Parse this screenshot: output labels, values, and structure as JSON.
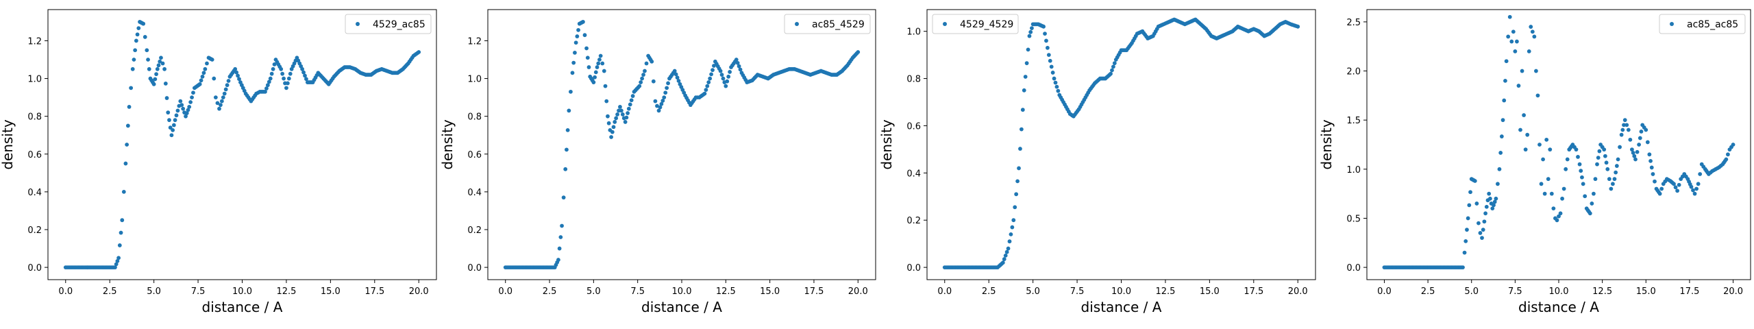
{
  "colors": {
    "series": "#1f77b4",
    "axis": "#000000",
    "legend_border": "#cccccc"
  },
  "chart_data": [
    {
      "type": "scatter",
      "xlabel": "distance / A",
      "ylabel": "density",
      "xlim": [
        -1.0,
        21.0
      ],
      "ylim": [
        -0.065,
        1.365
      ],
      "xticks": [
        0.0,
        2.5,
        5.0,
        7.5,
        10.0,
        12.5,
        15.0,
        17.5,
        20.0
      ],
      "xtick_labels": [
        "0.0",
        "2.5",
        "5.0",
        "7.5",
        "10.0",
        "12.5",
        "15.0",
        "17.5",
        "20.0"
      ],
      "yticks": [
        0.0,
        0.2,
        0.4,
        0.6,
        0.8,
        1.0,
        1.2
      ],
      "ytick_labels": [
        "0.0",
        "0.2",
        "0.4",
        "0.6",
        "0.8",
        "1.0",
        "1.2"
      ],
      "legend": "top-right",
      "grid": false,
      "series": [
        {
          "name": "4529_ac85",
          "x": [
            0.0,
            2.8,
            3.0,
            3.2,
            3.4,
            3.6,
            3.8,
            4.0,
            4.2,
            4.4,
            4.6,
            4.8,
            5.0,
            5.2,
            5.4,
            5.6,
            5.8,
            6.0,
            6.2,
            6.5,
            6.8,
            7.0,
            7.3,
            7.6,
            7.9,
            8.1,
            8.3,
            8.5,
            8.7,
            9.0,
            9.3,
            9.6,
            9.9,
            10.2,
            10.5,
            10.8,
            11.0,
            11.3,
            11.6,
            11.9,
            12.2,
            12.5,
            12.8,
            13.1,
            13.4,
            13.7,
            14.0,
            14.3,
            14.6,
            14.9,
            15.2,
            15.5,
            15.8,
            16.1,
            16.4,
            16.7,
            17.0,
            17.3,
            17.6,
            17.9,
            18.2,
            18.5,
            18.8,
            19.1,
            19.4,
            19.7,
            20.0
          ],
          "y": [
            0.0,
            0.0,
            0.05,
            0.25,
            0.55,
            0.85,
            1.05,
            1.2,
            1.3,
            1.29,
            1.15,
            1.0,
            0.97,
            1.05,
            1.11,
            1.05,
            0.82,
            0.7,
            0.78,
            0.88,
            0.8,
            0.85,
            0.95,
            0.97,
            1.05,
            1.11,
            1.1,
            0.9,
            0.84,
            0.92,
            1.01,
            1.05,
            0.98,
            0.92,
            0.88,
            0.92,
            0.93,
            0.93,
            1.0,
            1.1,
            1.05,
            0.95,
            1.05,
            1.11,
            1.05,
            0.98,
            0.98,
            1.03,
            1.0,
            0.97,
            1.01,
            1.04,
            1.06,
            1.06,
            1.05,
            1.03,
            1.02,
            1.02,
            1.04,
            1.05,
            1.04,
            1.03,
            1.03,
            1.05,
            1.08,
            1.12,
            1.14
          ]
        }
      ]
    },
    {
      "type": "scatter",
      "xlabel": "distance / A",
      "ylabel": "density",
      "xlim": [
        -1.0,
        21.0
      ],
      "ylim": [
        -0.065,
        1.365
      ],
      "xticks": [
        0.0,
        2.5,
        5.0,
        7.5,
        10.0,
        12.5,
        15.0,
        17.5,
        20.0
      ],
      "xtick_labels": [
        "0.0",
        "2.5",
        "5.0",
        "7.5",
        "10.0",
        "12.5",
        "15.0",
        "17.5",
        "20.0"
      ],
      "yticks": [
        0.0,
        0.2,
        0.4,
        0.6,
        0.8,
        1.0,
        1.2
      ],
      "ytick_labels": [
        "0.0",
        "0.2",
        "0.4",
        "0.6",
        "0.8",
        "1.0",
        "1.2"
      ],
      "legend": "top-right",
      "grid": false,
      "series": [
        {
          "name": "ac85_4529",
          "x": [
            0.0,
            2.8,
            3.0,
            3.2,
            3.4,
            3.6,
            3.8,
            4.0,
            4.2,
            4.4,
            4.6,
            4.8,
            5.0,
            5.2,
            5.4,
            5.6,
            5.8,
            6.0,
            6.2,
            6.5,
            6.8,
            7.0,
            7.3,
            7.6,
            7.9,
            8.1,
            8.3,
            8.5,
            8.7,
            9.0,
            9.3,
            9.6,
            9.9,
            10.2,
            10.5,
            10.8,
            11.0,
            11.3,
            11.6,
            11.9,
            12.2,
            12.5,
            12.8,
            13.1,
            13.4,
            13.7,
            14.0,
            14.3,
            14.6,
            14.9,
            15.2,
            15.5,
            15.8,
            16.1,
            16.4,
            16.7,
            17.0,
            17.3,
            17.6,
            17.9,
            18.2,
            18.5,
            18.8,
            19.1,
            19.4,
            19.7,
            20.0
          ],
          "y": [
            0.0,
            0.0,
            0.04,
            0.22,
            0.52,
            0.83,
            1.03,
            1.19,
            1.29,
            1.3,
            1.16,
            1.01,
            0.98,
            1.06,
            1.12,
            1.04,
            0.8,
            0.69,
            0.77,
            0.85,
            0.77,
            0.84,
            0.93,
            0.96,
            1.04,
            1.12,
            1.09,
            0.88,
            0.83,
            0.9,
            1.0,
            1.04,
            0.97,
            0.91,
            0.86,
            0.9,
            0.9,
            0.92,
            1.0,
            1.09,
            1.04,
            0.96,
            1.06,
            1.1,
            1.03,
            0.98,
            0.99,
            1.02,
            1.01,
            1.0,
            1.02,
            1.03,
            1.04,
            1.05,
            1.05,
            1.04,
            1.03,
            1.02,
            1.03,
            1.04,
            1.03,
            1.02,
            1.02,
            1.04,
            1.07,
            1.11,
            1.14
          ]
        }
      ]
    },
    {
      "type": "scatter",
      "xlabel": "distance / A",
      "ylabel": "density",
      "xlim": [
        -1.0,
        21.0
      ],
      "ylim": [
        -0.052,
        1.092
      ],
      "xticks": [
        0.0,
        2.5,
        5.0,
        7.5,
        10.0,
        12.5,
        15.0,
        17.5,
        20.0
      ],
      "xtick_labels": [
        "0.0",
        "2.5",
        "5.0",
        "7.5",
        "10.0",
        "12.5",
        "15.0",
        "17.5",
        "20.0"
      ],
      "yticks": [
        0.0,
        0.2,
        0.4,
        0.6,
        0.8,
        1.0
      ],
      "ytick_labels": [
        "0.0",
        "0.2",
        "0.4",
        "0.6",
        "0.8",
        "1.0"
      ],
      "legend": "top-left",
      "grid": false,
      "series": [
        {
          "name": "4529_4529",
          "x": [
            0.0,
            3.0,
            3.3,
            3.6,
            3.9,
            4.2,
            4.5,
            4.8,
            5.0,
            5.3,
            5.6,
            5.9,
            6.2,
            6.5,
            6.8,
            7.1,
            7.3,
            7.6,
            7.9,
            8.2,
            8.5,
            8.8,
            9.1,
            9.4,
            9.7,
            10.0,
            10.3,
            10.6,
            10.9,
            11.2,
            11.5,
            11.8,
            12.1,
            12.4,
            12.7,
            13.0,
            13.3,
            13.6,
            13.9,
            14.2,
            14.5,
            14.8,
            15.1,
            15.4,
            15.7,
            16.0,
            16.3,
            16.6,
            16.9,
            17.2,
            17.5,
            17.8,
            18.1,
            18.4,
            18.7,
            19.0,
            19.3,
            19.6,
            20.0
          ],
          "y": [
            0.0,
            0.0,
            0.02,
            0.08,
            0.2,
            0.42,
            0.75,
            0.98,
            1.03,
            1.03,
            1.02,
            0.9,
            0.8,
            0.73,
            0.69,
            0.65,
            0.64,
            0.67,
            0.71,
            0.75,
            0.78,
            0.8,
            0.8,
            0.82,
            0.88,
            0.92,
            0.92,
            0.95,
            0.99,
            1.0,
            0.97,
            0.98,
            1.02,
            1.03,
            1.04,
            1.05,
            1.04,
            1.03,
            1.04,
            1.05,
            1.03,
            1.01,
            0.98,
            0.97,
            0.98,
            0.99,
            1.0,
            1.02,
            1.01,
            1.0,
            1.01,
            1.0,
            0.98,
            0.99,
            1.01,
            1.03,
            1.04,
            1.03,
            1.02
          ]
        }
      ]
    },
    {
      "type": "scatter",
      "xlabel": "distance / A",
      "ylabel": "density",
      "xlim": [
        -1.0,
        21.0
      ],
      "ylim": [
        -0.125,
        2.625
      ],
      "xticks": [
        0.0,
        2.5,
        5.0,
        7.5,
        10.0,
        12.5,
        15.0,
        17.5,
        20.0
      ],
      "xtick_labels": [
        "0.0",
        "2.5",
        "5.0",
        "7.5",
        "10.0",
        "12.5",
        "15.0",
        "17.5",
        "20.0"
      ],
      "yticks": [
        0.0,
        0.5,
        1.0,
        1.5,
        2.0,
        2.5
      ],
      "ytick_labels": [
        "0.0",
        "0.5",
        "1.0",
        "1.5",
        "2.0",
        "2.5"
      ],
      "legend": "top-right",
      "grid": false,
      "series": [
        {
          "name": "ac85_ac85",
          "x": [
            0.0,
            4.5,
            4.6,
            4.8,
            5.0,
            5.2,
            5.3,
            5.4,
            5.5,
            5.6,
            5.8,
            6.0,
            6.2,
            6.4,
            6.6,
            6.8,
            7.0,
            7.1,
            7.2,
            7.3,
            7.4,
            7.5,
            7.6,
            7.7,
            7.8,
            7.9,
            8.0,
            8.1,
            8.2,
            8.3,
            8.4,
            8.5,
            8.6,
            8.7,
            8.8,
            8.9,
            9.0,
            9.1,
            9.2,
            9.3,
            9.4,
            9.5,
            9.6,
            9.7,
            9.8,
            9.9,
            10.0,
            10.1,
            10.2,
            10.3,
            10.4,
            10.5,
            10.6,
            10.8,
            11.0,
            11.2,
            11.4,
            11.6,
            11.8,
            12.0,
            12.2,
            12.4,
            12.6,
            12.8,
            13.0,
            13.2,
            13.4,
            13.6,
            13.8,
            14.0,
            14.2,
            14.4,
            14.6,
            14.8,
            15.0,
            15.2,
            15.4,
            15.6,
            15.8,
            16.0,
            16.2,
            16.4,
            16.6,
            16.8,
            17.0,
            17.2,
            17.4,
            17.6,
            17.8,
            18.0,
            18.2,
            18.4,
            18.6,
            18.8,
            19.0,
            19.2,
            19.4,
            19.6,
            19.8,
            20.0
          ],
          "y": [
            0.0,
            0.0,
            0.15,
            0.5,
            0.9,
            0.88,
            0.65,
            0.45,
            0.35,
            0.3,
            0.55,
            0.75,
            0.6,
            0.7,
            1.0,
            1.5,
            2.1,
            2.35,
            2.55,
            2.3,
            2.4,
            2.2,
            2.3,
            1.85,
            1.4,
            2.0,
            1.55,
            1.2,
            1.35,
            2.2,
            2.45,
            2.4,
            2.35,
            2.0,
            1.75,
            1.25,
            0.85,
            1.1,
            0.75,
            1.3,
            0.9,
            1.2,
            0.75,
            0.6,
            0.5,
            0.48,
            0.52,
            0.55,
            0.7,
            0.8,
            1.0,
            1.1,
            1.2,
            1.25,
            1.2,
            1.05,
            0.85,
            0.6,
            0.55,
            0.75,
            1.05,
            1.25,
            1.2,
            1.0,
            0.8,
            0.9,
            1.1,
            1.35,
            1.5,
            1.4,
            1.2,
            1.1,
            1.25,
            1.45,
            1.4,
            1.15,
            0.95,
            0.8,
            0.75,
            0.85,
            0.9,
            0.88,
            0.85,
            0.78,
            0.9,
            0.95,
            0.9,
            0.82,
            0.75,
            0.85,
            1.05,
            1.0,
            0.95,
            0.98,
            1.0,
            1.02,
            1.05,
            1.1,
            1.2,
            1.25
          ]
        }
      ]
    }
  ]
}
